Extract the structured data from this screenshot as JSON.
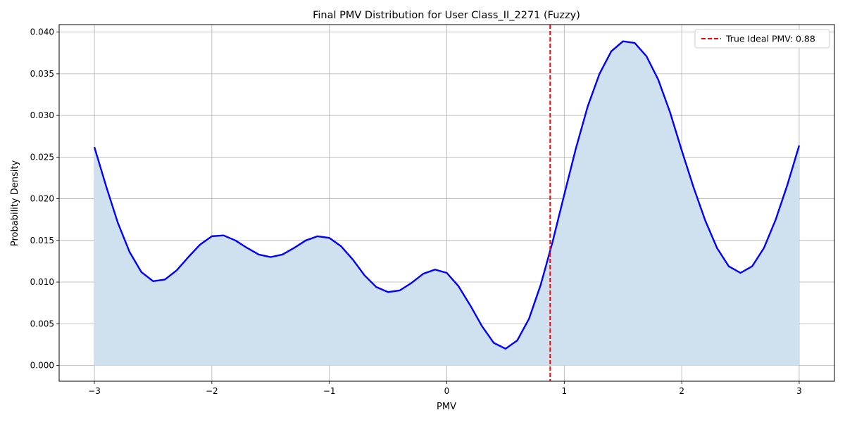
{
  "chart_data": {
    "type": "line",
    "title": "Final PMV Distribution for User Class_II_2271 (Fuzzy)",
    "xlabel": "PMV",
    "ylabel": "Probability Density",
    "xlim": [
      -3.3,
      3.3
    ],
    "ylim": [
      -0.0019,
      0.0409
    ],
    "grid": true,
    "legend_placement": "top-right",
    "x_ticks": [
      -3,
      -2,
      -1,
      0,
      1,
      2,
      3
    ],
    "x_tick_labels": [
      "−3",
      "−2",
      "−1",
      "0",
      "1",
      "2",
      "3"
    ],
    "y_ticks": [
      0.0,
      0.005,
      0.01,
      0.015,
      0.02,
      0.025,
      0.03,
      0.035,
      0.04
    ],
    "y_tick_labels": [
      "0.000",
      "0.005",
      "0.010",
      "0.015",
      "0.020",
      "0.025",
      "0.030",
      "0.035",
      "0.040"
    ],
    "series": [
      {
        "color": "#0000ff",
        "fill_color": "#cfe1ef",
        "x": [
          -3.0,
          -2.9,
          -2.8,
          -2.7,
          -2.6,
          -2.5,
          -2.4,
          -2.3,
          -2.2,
          -2.1,
          -2.0,
          -1.9,
          -1.8,
          -1.7,
          -1.6,
          -1.5,
          -1.4,
          -1.3,
          -1.2,
          -1.1,
          -1.0,
          -0.9,
          -0.8,
          -0.7,
          -0.6,
          -0.5,
          -0.4,
          -0.3,
          -0.2,
          -0.1,
          0.0,
          0.1,
          0.2,
          0.3,
          0.4,
          0.5,
          0.6,
          0.7,
          0.8,
          0.9,
          1.0,
          1.1,
          1.2,
          1.3,
          1.4,
          1.5,
          1.6,
          1.7,
          1.8,
          1.9,
          2.0,
          2.1,
          2.2,
          2.3,
          2.4,
          2.5,
          2.6,
          2.7,
          2.8,
          2.9,
          3.0
        ],
        "y": [
          0.0262,
          0.0215,
          0.0171,
          0.0136,
          0.0112,
          0.0101,
          0.0103,
          0.0114,
          0.013,
          0.0145,
          0.0155,
          0.0156,
          0.015,
          0.0141,
          0.0133,
          0.013,
          0.0133,
          0.0141,
          0.015,
          0.0155,
          0.0153,
          0.0143,
          0.0127,
          0.0108,
          0.0094,
          0.0088,
          0.009,
          0.0099,
          0.011,
          0.0115,
          0.0111,
          0.0095,
          0.0072,
          0.0047,
          0.0027,
          0.002,
          0.003,
          0.0056,
          0.0097,
          0.0148,
          0.0205,
          0.0261,
          0.0311,
          0.035,
          0.0377,
          0.0389,
          0.0387,
          0.0371,
          0.0343,
          0.0304,
          0.0258,
          0.0214,
          0.0174,
          0.0141,
          0.0119,
          0.0111,
          0.0119,
          0.0141,
          0.0175,
          0.0217,
          0.0264
        ]
      }
    ],
    "vline": {
      "x": 0.88,
      "color": "#ff0000",
      "style": "dashed",
      "label": "True Ideal PMV: 0.88"
    }
  }
}
